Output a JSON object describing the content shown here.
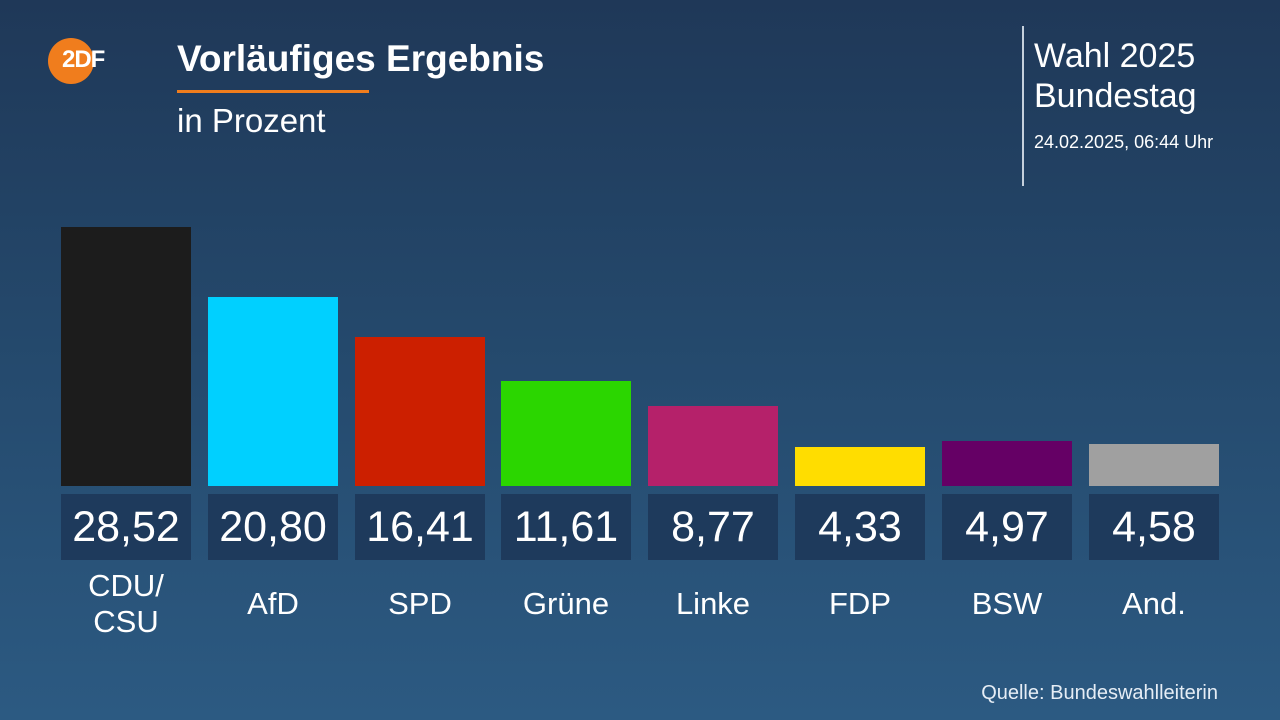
{
  "header": {
    "logo_text": "2DF",
    "title": "Vorläufiges Ergebnis",
    "subtitle": "in Prozent",
    "election_line1": "Wahl 2025",
    "election_line2": "Bundestag",
    "timestamp": "24.02.2025, 06:44 Uhr"
  },
  "footer": {
    "source": "Quelle: Bundeswahlleiterin"
  },
  "colors": {
    "accent": "#f07d1d"
  },
  "chart_data": {
    "type": "bar",
    "title": "Vorläufiges Ergebnis",
    "subtitle": "in Prozent",
    "xlabel": "",
    "ylabel": "Prozent",
    "categories": [
      "CDU/CSU",
      "AfD",
      "SPD",
      "Grüne",
      "Linke",
      "FDP",
      "BSW",
      "And."
    ],
    "display_labels": [
      "CDU/\nCSU",
      "AfD",
      "SPD",
      "Grüne",
      "Linke",
      "FDP",
      "BSW",
      "And."
    ],
    "values": [
      28.52,
      20.8,
      16.41,
      11.61,
      8.77,
      4.33,
      4.97,
      4.58
    ],
    "value_labels": [
      "28,52",
      "20,80",
      "16,41",
      "11,61",
      "8,77",
      "4,33",
      "4,97",
      "4,58"
    ],
    "colors": [
      "#1c1c1c",
      "#00d0ff",
      "#cc1f00",
      "#2bd600",
      "#b5216a",
      "#ffdd00",
      "#650065",
      "#a0a0a0"
    ],
    "grid": false,
    "legend": "none"
  }
}
